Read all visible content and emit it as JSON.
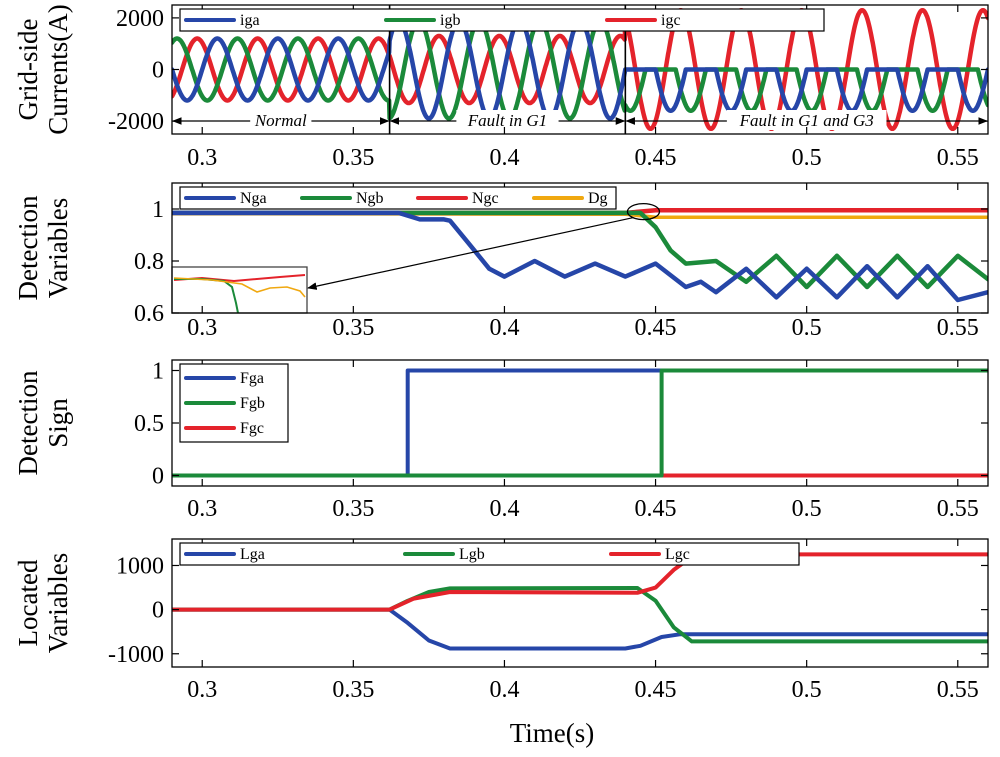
{
  "chart_data": {
    "type": "line",
    "xlabel": "Time(s)",
    "xlim": [
      0.29,
      0.56
    ],
    "xticks": [
      0.3,
      0.35,
      0.4,
      0.45,
      0.5,
      0.55
    ],
    "xtick_labels": [
      "0.3",
      "0.35",
      "0.4",
      "0.45",
      "0.5",
      "0.55"
    ],
    "colors": {
      "a": "#2646a8",
      "b": "#1b8a3a",
      "c": "#e4232b",
      "d": "#f0a810"
    },
    "panels": [
      {
        "id": "currents",
        "ylabel": [
          "Grid-side",
          "Currents(A)"
        ],
        "ylim": [
          -2500,
          2500
        ],
        "yticks": [
          -2000,
          0,
          2000
        ],
        "ytick_labels": [
          "-2000",
          "0",
          "2000"
        ],
        "legend": [
          "iga",
          "igb",
          "igc"
        ],
        "events": [
          0.362,
          0.44
        ],
        "regions": [
          {
            "label": "Normal",
            "from": 0.29,
            "to": 0.362
          },
          {
            "label": "Fault in G1",
            "from": 0.362,
            "to": 0.44
          },
          {
            "label": "Fault in G1 and G3",
            "from": 0.44,
            "to": 0.56
          }
        ],
        "frequency_hz": 50,
        "series": [
          {
            "name": "iga",
            "key": "a",
            "amp_normal": 1200,
            "amp_fault_g1": 1900,
            "amp_fault_g1_g3": 1600,
            "phase_deg": 0
          },
          {
            "name": "igb",
            "key": "b",
            "amp_normal": 1200,
            "amp_fault_g1": 1900,
            "amp_fault_g1_g3": 1600,
            "phase_deg": -120
          },
          {
            "name": "igc",
            "key": "c",
            "amp_normal": 1200,
            "amp_fault_g1": 1300,
            "amp_fault_g1_g3": 2300,
            "phase_deg": 120
          }
        ]
      },
      {
        "id": "detection",
        "ylabel": [
          "Detection",
          "Variables"
        ],
        "ylim": [
          0.6,
          1.1
        ],
        "yticks": [
          0.6,
          0.8,
          1
        ],
        "ytick_labels": [
          "0.6",
          "0.8",
          "1"
        ],
        "legend": [
          "Nga",
          "Ngb",
          "Ngc",
          "Dg"
        ],
        "zoom_inset": {
          "center_x": 0.446,
          "center_y": 0.99
        },
        "series": [
          {
            "name": "Nga",
            "key": "a",
            "x": [
              0.29,
              0.365,
              0.372,
              0.38,
              0.382,
              0.388,
              0.395,
              0.4,
              0.41,
              0.42,
              0.43,
              0.44,
              0.45,
              0.46,
              0.465,
              0.47,
              0.48,
              0.49,
              0.5,
              0.51,
              0.52,
              0.53,
              0.54,
              0.55,
              0.56
            ],
            "y": [
              0.985,
              0.985,
              0.96,
              0.96,
              0.955,
              0.87,
              0.77,
              0.74,
              0.8,
              0.74,
              0.79,
              0.74,
              0.79,
              0.7,
              0.72,
              0.68,
              0.77,
              0.66,
              0.77,
              0.66,
              0.78,
              0.66,
              0.78,
              0.65,
              0.68
            ]
          },
          {
            "name": "Ngb",
            "key": "b",
            "x": [
              0.29,
              0.445,
              0.45,
              0.455,
              0.46,
              0.47,
              0.48,
              0.49,
              0.5,
              0.51,
              0.52,
              0.53,
              0.54,
              0.55,
              0.56
            ],
            "y": [
              0.985,
              0.985,
              0.93,
              0.84,
              0.79,
              0.8,
              0.72,
              0.82,
              0.7,
              0.82,
              0.7,
              0.82,
              0.7,
              0.82,
              0.73
            ]
          },
          {
            "name": "Ngc",
            "key": "c",
            "x": [
              0.29,
              0.44,
              0.45,
              0.56
            ],
            "y": [
              0.985,
              0.985,
              0.995,
              0.995
            ]
          },
          {
            "name": "Dg",
            "key": "d",
            "x": [
              0.29,
              0.44,
              0.45,
              0.56
            ],
            "y": [
              0.982,
              0.98,
              0.968,
              0.968
            ]
          }
        ]
      },
      {
        "id": "sign",
        "ylabel": [
          "Detection",
          "Sign"
        ],
        "ylim": [
          -0.1,
          1.1
        ],
        "yticks": [
          0,
          0.5,
          1
        ],
        "ytick_labels": [
          "0",
          "0.5",
          "1"
        ],
        "legend": [
          "Fga",
          "Fgb",
          "Fgc"
        ],
        "series": [
          {
            "name": "Fgc",
            "key": "c",
            "x": [
              0.29,
              0.56
            ],
            "y": [
              0,
              0
            ]
          },
          {
            "name": "Fga",
            "key": "a",
            "x": [
              0.29,
              0.368,
              0.368,
              0.452
            ],
            "y": [
              0,
              0,
              1,
              1
            ]
          },
          {
            "name": "Fgb",
            "key": "b",
            "x": [
              0.29,
              0.452,
              0.452,
              0.56
            ],
            "y": [
              0,
              0,
              1,
              1
            ]
          }
        ]
      },
      {
        "id": "located",
        "ylabel": [
          "Located",
          "Variables"
        ],
        "ylim": [
          -1300,
          1600
        ],
        "yticks": [
          -1000,
          0,
          1000
        ],
        "ytick_labels": [
          "-1000",
          "0",
          "1000"
        ],
        "legend": [
          "Lga",
          "Lgb",
          "Lgc"
        ],
        "series": [
          {
            "name": "Lga",
            "key": "a",
            "x": [
              0.29,
              0.362,
              0.368,
              0.375,
              0.382,
              0.44,
              0.445,
              0.452,
              0.458,
              0.56
            ],
            "y": [
              0,
              0,
              -300,
              -700,
              -880,
              -880,
              -820,
              -620,
              -560,
              -560
            ]
          },
          {
            "name": "Lgb",
            "key": "b",
            "x": [
              0.29,
              0.362,
              0.368,
              0.375,
              0.382,
              0.444,
              0.45,
              0.456,
              0.462,
              0.56
            ],
            "y": [
              0,
              0,
              200,
              400,
              480,
              490,
              200,
              -400,
              -720,
              -720
            ]
          },
          {
            "name": "Lgc",
            "key": "c",
            "x": [
              0.29,
              0.362,
              0.37,
              0.382,
              0.444,
              0.45,
              0.456,
              0.462,
              0.465,
              0.56
            ],
            "y": [
              0,
              0,
              250,
              400,
              380,
              500,
              900,
              1200,
              1250,
              1250
            ]
          }
        ]
      }
    ]
  }
}
